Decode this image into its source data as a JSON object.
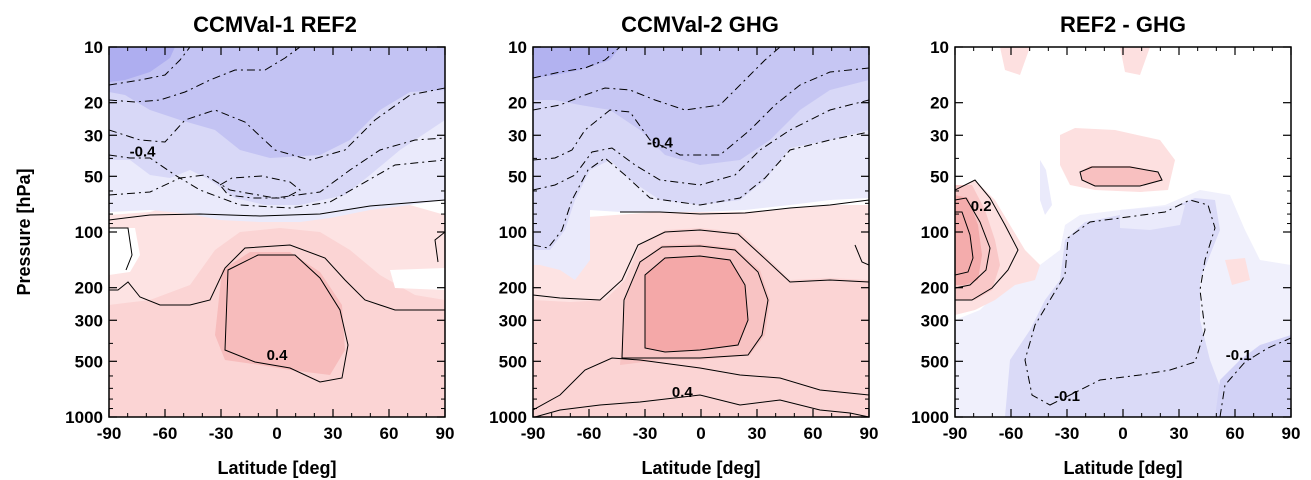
{
  "chart_data": [
    {
      "type": "heatmap",
      "title": "CCMVal-1 REF2",
      "xlabel": "Latitude [deg]",
      "ylabel": "Pressure [hPa]",
      "xlim": [
        -90,
        90
      ],
      "ylim": [
        1000,
        10
      ],
      "yscale": "log",
      "xticks": [
        -90,
        -60,
        -30,
        0,
        30,
        60,
        90
      ],
      "yticks": [
        10,
        20,
        30,
        50,
        100,
        200,
        300,
        500,
        1000
      ],
      "colors": {
        "positive": "#f4a6a6",
        "negative": "#a7a7f2"
      },
      "contour_labels": [
        {
          "text": "-0.4",
          "lat": -72,
          "p": 38
        },
        {
          "text": "0.4",
          "lat": 0,
          "p": 480
        }
      ]
    },
    {
      "type": "heatmap",
      "title": "CCMVal-2 GHG",
      "xlabel": "Latitude [deg]",
      "ylabel": "",
      "xlim": [
        -90,
        90
      ],
      "ylim": [
        1000,
        10
      ],
      "yscale": "log",
      "xticks": [
        -90,
        -60,
        -30,
        0,
        30,
        60,
        90
      ],
      "yticks": [
        10,
        20,
        30,
        50,
        100,
        200,
        300,
        500,
        1000
      ],
      "colors": {
        "positive": "#f4a6a6",
        "negative": "#a7a7f2"
      },
      "contour_labels": [
        {
          "text": "-0.4",
          "lat": -22,
          "p": 34
        },
        {
          "text": "0.4",
          "lat": -10,
          "p": 760
        }
      ]
    },
    {
      "type": "heatmap",
      "title": "REF2 - GHG",
      "xlabel": "Latitude [deg]",
      "ylabel": "",
      "xlim": [
        -90,
        90
      ],
      "ylim": [
        1000,
        10
      ],
      "yscale": "log",
      "xticks": [
        -90,
        -60,
        -30,
        0,
        30,
        60,
        90
      ],
      "yticks": [
        10,
        20,
        30,
        50,
        100,
        200,
        300,
        500,
        1000
      ],
      "colors": {
        "positive": "#f4a6a6",
        "negative": "#a7a7f2"
      },
      "contour_labels": [
        {
          "text": "0.2",
          "lat": -76,
          "p": 75
        },
        {
          "text": "-0.1",
          "lat": -30,
          "p": 800
        },
        {
          "text": "-0.1",
          "lat": 62,
          "p": 480
        }
      ]
    }
  ]
}
